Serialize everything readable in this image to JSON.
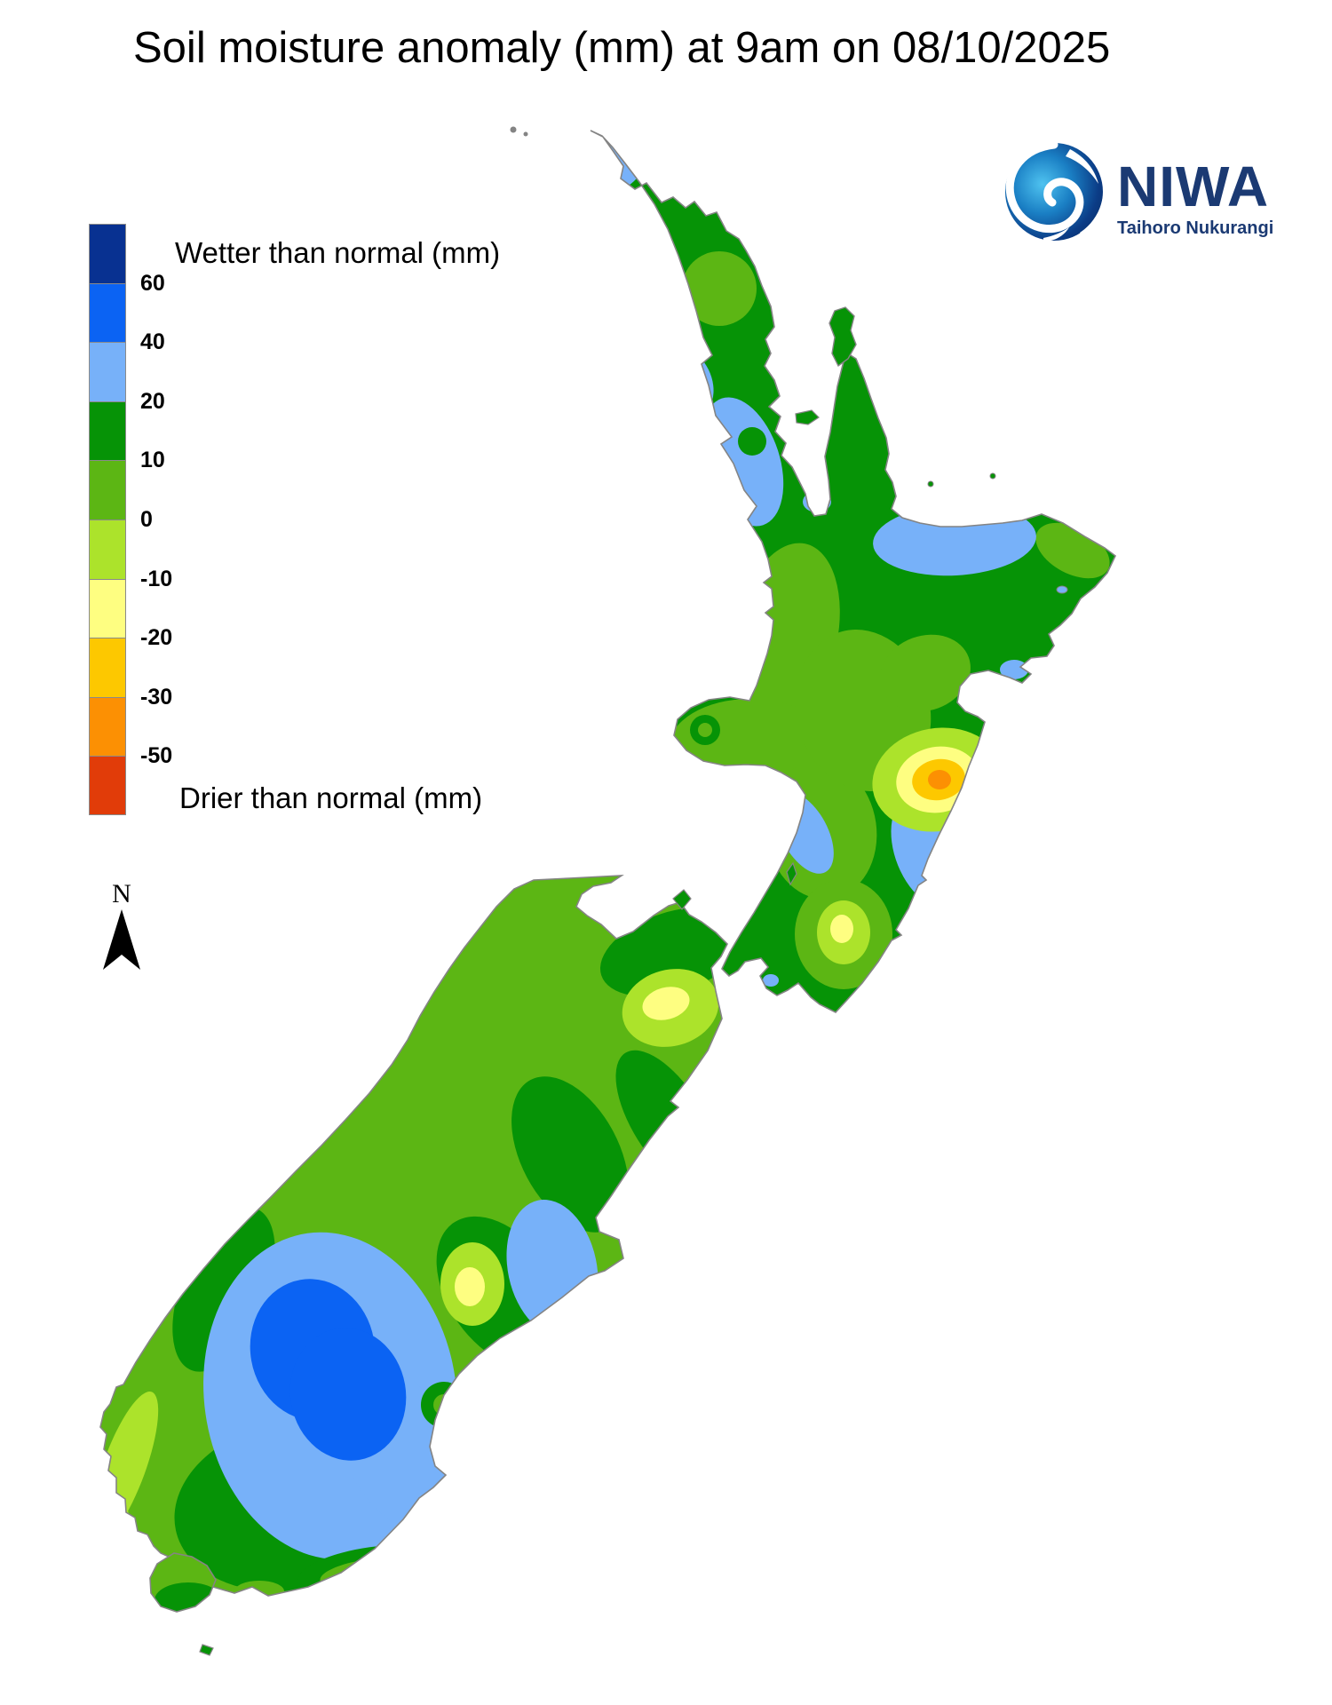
{
  "title": "Soil moisture anomaly (mm) at 9am on 08/10/2025",
  "logo": {
    "name": "NIWA",
    "subtitle": "Taihoro Nukurangi",
    "color": "#1b3a73"
  },
  "legend": {
    "wetter_label": "Wetter than normal (mm)",
    "drier_label": "Drier than normal (mm)",
    "bands": [
      {
        "color": "#083191",
        "label": "60"
      },
      {
        "color": "#0b63f3",
        "label": "40"
      },
      {
        "color": "#77b1f9",
        "label": "20"
      },
      {
        "color": "#069306",
        "label": "10"
      },
      {
        "color": "#5cb614",
        "label": "0"
      },
      {
        "color": "#ace32b",
        "label": "-10"
      },
      {
        "color": "#fefe81",
        "label": "-20"
      },
      {
        "color": "#fdc800",
        "label": "-30"
      },
      {
        "color": "#fc9003",
        "label": "-50"
      },
      {
        "color": "#e13c09",
        "label": ""
      }
    ]
  },
  "compass": {
    "label": "N"
  },
  "map": {
    "region": "New Zealand",
    "sea_color": "#ffffff",
    "coastline_color": "#848484",
    "palette": {
      "navy": "#083191",
      "blue": "#0b63f3",
      "lightBlue": "#77b1f9",
      "darkGreen": "#069306",
      "midGreen": "#5cb614",
      "yellowGreen": "#ace32b",
      "paleYellow": "#fefe81",
      "gold": "#fdc800",
      "orange": "#fc9003",
      "redOrange": "#e13c09",
      "coast": "#848484",
      "logoNavy": "#1b3a73"
    },
    "features": [
      {
        "name": "hawkes-bay-dry-spot",
        "description": "Orange/gold/yellow bullseye (down to -30 to -50 mm) on the east coast of the North Island"
      },
      {
        "name": "otago-wet-core",
        "description": "Bright blue core (40 to 60 mm wetter) surrounded by light blue over inland Otago/Southland"
      },
      {
        "name": "marlborough-dry-patch",
        "description": "Pale yellow patch (-10 to -20 mm) in Marlborough, north-east South Island"
      },
      {
        "name": "timaru-dry-patch",
        "description": "Small pale yellow patch (-10 to -20 mm) near the South Canterbury coast"
      },
      {
        "name": "wairarapa-dry-patch",
        "description": "Yellow-green patch (0 to -10 mm) in the southern Wairarapa"
      },
      {
        "name": "coastal-wet-bands",
        "description": "Light blue bands (20-40 mm wetter) at Cape Reinga, Auckland, Bay of Plenty, southern Hawke's Bay coast, Kapiti coast and Banks Peninsula"
      }
    ]
  }
}
